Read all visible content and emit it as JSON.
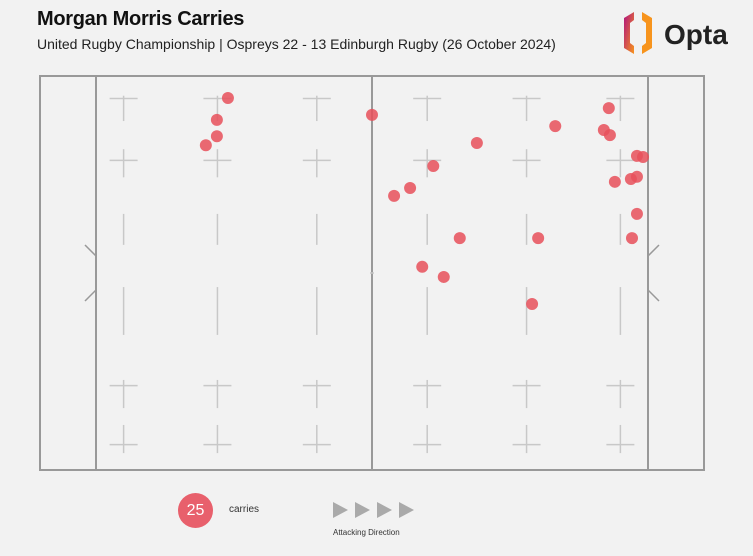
{
  "header": {
    "title": "Morgan Morris Carries",
    "subtitle": "United Rugby Championship | Ospreys 22 - 13 Edinburgh Rugby (26 October 2024)",
    "logo_text": "Opta"
  },
  "legend": {
    "count": "25",
    "count_label": "carries",
    "direction_label": "Attacking Direction",
    "marker_color": "#e8606c"
  },
  "chart_data": {
    "type": "scatter",
    "title": "Morgan Morris Carries",
    "xlim": [
      0,
      100
    ],
    "ylim": [
      0,
      70
    ],
    "grid": false,
    "marker_color": "#e8505b",
    "points": [
      {
        "x": 23.9,
        "y": 3.9
      },
      {
        "x": 21.9,
        "y": 7.8
      },
      {
        "x": 21.9,
        "y": 10.7
      },
      {
        "x": 19.9,
        "y": 12.3
      },
      {
        "x": 50.0,
        "y": 6.9
      },
      {
        "x": 69.0,
        "y": 11.9
      },
      {
        "x": 61.1,
        "y": 16.0
      },
      {
        "x": 56.9,
        "y": 19.9
      },
      {
        "x": 54.0,
        "y": 21.3
      },
      {
        "x": 65.9,
        "y": 28.8
      },
      {
        "x": 59.1,
        "y": 33.9
      },
      {
        "x": 63.0,
        "y": 35.7
      },
      {
        "x": 80.1,
        "y": 28.8
      },
      {
        "x": 79.0,
        "y": 40.5
      },
      {
        "x": 83.2,
        "y": 8.9
      },
      {
        "x": 92.9,
        "y": 5.7
      },
      {
        "x": 92.0,
        "y": 9.6
      },
      {
        "x": 93.1,
        "y": 10.5
      },
      {
        "x": 98.0,
        "y": 14.2
      },
      {
        "x": 99.1,
        "y": 14.4
      },
      {
        "x": 94.0,
        "y": 18.8
      },
      {
        "x": 96.9,
        "y": 18.3
      },
      {
        "x": 98.0,
        "y": 17.9
      },
      {
        "x": 98.0,
        "y": 24.5
      },
      {
        "x": 97.1,
        "y": 28.8
      }
    ]
  }
}
